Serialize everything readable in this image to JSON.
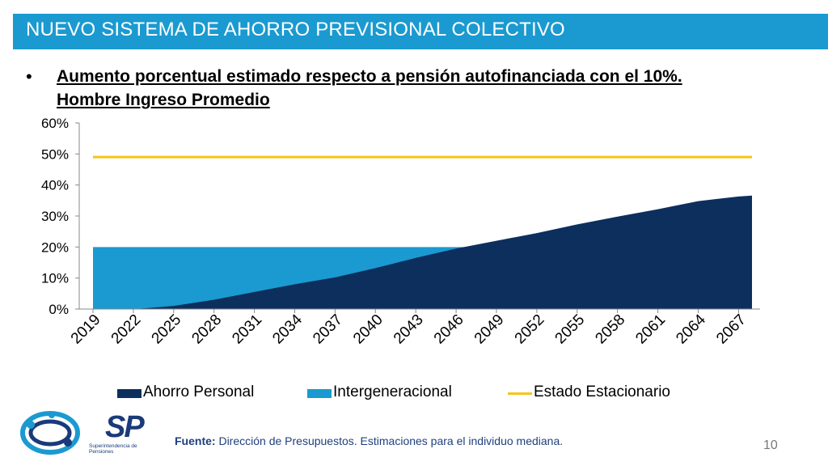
{
  "header": {
    "title": "NUEVO SISTEMA DE AHORRO PREVISIONAL COLECTIVO"
  },
  "bullet": {
    "line1": "Aumento porcentual estimado respecto a pensión autofinanciada con el 10%.",
    "line2": "Hombre Ingreso Promedio"
  },
  "chart_data": {
    "type": "area",
    "x_tick_labels": [
      "2019",
      "2022",
      "2025",
      "2028",
      "2031",
      "2034",
      "2037",
      "2040",
      "2043",
      "2046",
      "2049",
      "2052",
      "2055",
      "2058",
      "2061",
      "2064",
      "2067"
    ],
    "y_tick_labels": [
      "0%",
      "10%",
      "20%",
      "30%",
      "40%",
      "50%",
      "60%"
    ],
    "ylim": [
      0,
      60
    ],
    "xlim": [
      2019,
      2068
    ],
    "grid": false,
    "legend_position": "bottom",
    "series": [
      {
        "name": "Ahorro Personal",
        "kind": "area",
        "color": "#0d2f5e",
        "points": [
          [
            2019,
            0
          ],
          [
            2022,
            0
          ],
          [
            2023,
            0.3
          ],
          [
            2025,
            1
          ],
          [
            2028,
            3
          ],
          [
            2031,
            5.5
          ],
          [
            2034,
            8
          ],
          [
            2037,
            10.2
          ],
          [
            2040,
            13.2
          ],
          [
            2043,
            16.5
          ],
          [
            2046,
            19.5
          ],
          [
            2049,
            22
          ],
          [
            2052,
            24.5
          ],
          [
            2055,
            27.3
          ],
          [
            2058,
            29.8
          ],
          [
            2061,
            32.2
          ],
          [
            2064,
            34.8
          ],
          [
            2067,
            36.3
          ],
          [
            2068,
            36.6
          ]
        ]
      },
      {
        "name": "Intergeneracional",
        "kind": "area",
        "color": "#1a9ad0",
        "points": [
          [
            2019,
            20
          ],
          [
            2068,
            20
          ]
        ]
      },
      {
        "name": "Estado Estacionario",
        "kind": "line",
        "color": "#f5c518",
        "points": [
          [
            2019,
            49
          ],
          [
            2068,
            49
          ]
        ]
      }
    ]
  },
  "footer": {
    "source_label": "Fuente:",
    "source_text": " Dirección de Presupuestos. Estimaciones para el individuo mediana.",
    "page_number": "10",
    "logo_text": "SP",
    "logo_name": "Superintendencia de Pensiones"
  }
}
